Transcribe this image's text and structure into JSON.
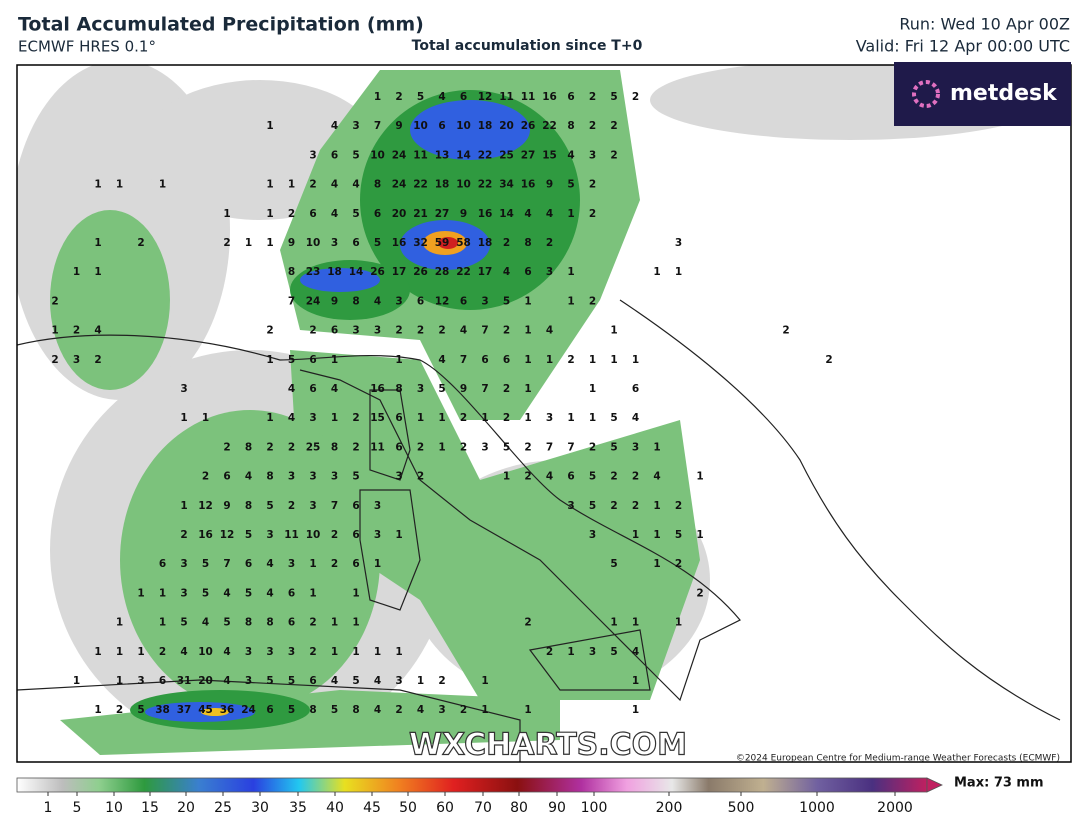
{
  "header": {
    "title": "Total Accumulated Precipitation (mm)",
    "model": "ECMWF HRES 0.1°",
    "subtitle": "Total accumulation since T+0",
    "run": "Run: Wed 10 Apr 00Z",
    "valid": "Valid: Fri 12 Apr 00:00 UTC"
  },
  "logo": "metdesk",
  "map": {
    "grid_rows": [
      [
        null,
        null,
        null,
        null,
        null,
        null,
        null,
        null,
        null,
        null,
        null,
        null,
        null,
        null,
        null,
        1,
        2,
        5,
        4,
        6,
        12,
        11,
        11,
        16,
        6,
        2,
        5,
        2
      ],
      [
        null,
        null,
        null,
        null,
        null,
        null,
        null,
        null,
        null,
        null,
        1,
        null,
        null,
        4,
        3,
        7,
        9,
        10,
        6,
        10,
        18,
        20,
        26,
        22,
        8,
        2,
        2
      ],
      [
        null,
        null,
        null,
        null,
        null,
        null,
        null,
        null,
        null,
        null,
        null,
        null,
        3,
        6,
        5,
        10,
        24,
        11,
        13,
        14,
        22,
        25,
        27,
        15,
        4,
        3,
        2
      ],
      [
        null,
        null,
        1,
        1,
        null,
        1,
        null,
        null,
        null,
        null,
        1,
        1,
        2,
        4,
        4,
        8,
        24,
        22,
        18,
        10,
        22,
        34,
        16,
        9,
        5,
        2
      ],
      [
        null,
        null,
        null,
        null,
        null,
        null,
        null,
        null,
        1,
        null,
        1,
        2,
        6,
        4,
        5,
        6,
        20,
        21,
        27,
        9,
        16,
        14,
        4,
        4,
        1,
        2
      ],
      [
        null,
        null,
        1,
        null,
        2,
        null,
        null,
        null,
        2,
        1,
        1,
        9,
        10,
        3,
        6,
        5,
        16,
        32,
        59,
        58,
        18,
        2,
        8,
        2,
        null,
        null,
        null,
        null,
        null,
        3
      ],
      [
        null,
        1,
        1,
        null,
        null,
        null,
        null,
        null,
        null,
        null,
        null,
        8,
        23,
        18,
        14,
        26,
        17,
        26,
        28,
        22,
        17,
        4,
        6,
        3,
        1,
        null,
        null,
        null,
        1,
        1
      ],
      [
        2,
        null,
        null,
        null,
        null,
        null,
        null,
        null,
        null,
        null,
        null,
        7,
        24,
        9,
        8,
        4,
        3,
        6,
        12,
        6,
        3,
        5,
        1,
        null,
        1,
        2
      ],
      [
        1,
        2,
        4,
        null,
        null,
        null,
        null,
        null,
        null,
        null,
        2,
        null,
        2,
        6,
        3,
        3,
        2,
        2,
        2,
        4,
        7,
        2,
        1,
        4,
        null,
        null,
        1,
        null,
        null,
        null,
        null,
        null,
        null,
        null,
        2
      ],
      [
        2,
        3,
        2,
        null,
        null,
        null,
        null,
        null,
        null,
        null,
        1,
        5,
        6,
        1,
        null,
        null,
        1,
        null,
        4,
        7,
        6,
        6,
        1,
        1,
        2,
        1,
        1,
        1,
        null,
        null,
        null,
        null,
        null,
        null,
        null,
        null,
        2
      ],
      [
        null,
        null,
        null,
        null,
        null,
        null,
        3,
        null,
        null,
        null,
        null,
        4,
        6,
        4,
        null,
        16,
        8,
        3,
        5,
        9,
        7,
        2,
        1,
        null,
        null,
        1,
        null,
        6
      ],
      [
        null,
        null,
        null,
        null,
        null,
        null,
        1,
        1,
        null,
        null,
        1,
        4,
        3,
        1,
        2,
        15,
        6,
        1,
        1,
        2,
        1,
        2,
        1,
        3,
        1,
        1,
        5,
        4
      ],
      [
        null,
        null,
        null,
        null,
        null,
        null,
        null,
        null,
        2,
        8,
        2,
        2,
        25,
        8,
        2,
        11,
        6,
        2,
        1,
        2,
        3,
        5,
        2,
        7,
        7,
        2,
        5,
        3,
        1
      ],
      [
        null,
        null,
        null,
        null,
        null,
        null,
        null,
        2,
        6,
        4,
        8,
        3,
        3,
        3,
        5,
        null,
        3,
        2,
        null,
        null,
        null,
        1,
        2,
        4,
        6,
        5,
        2,
        2,
        4,
        null,
        1
      ],
      [
        null,
        null,
        null,
        null,
        null,
        null,
        1,
        12,
        9,
        8,
        5,
        2,
        3,
        7,
        6,
        3,
        null,
        null,
        null,
        null,
        null,
        null,
        null,
        null,
        3,
        5,
        2,
        2,
        1,
        2
      ],
      [
        null,
        null,
        null,
        null,
        null,
        null,
        2,
        16,
        12,
        5,
        3,
        11,
        10,
        2,
        6,
        3,
        1,
        null,
        null,
        null,
        null,
        null,
        null,
        null,
        null,
        3,
        null,
        1,
        1,
        5,
        1
      ],
      [
        null,
        null,
        null,
        null,
        null,
        6,
        3,
        5,
        7,
        6,
        4,
        3,
        1,
        2,
        6,
        1,
        null,
        null,
        null,
        null,
        null,
        null,
        null,
        null,
        null,
        null,
        5,
        null,
        1,
        2
      ],
      [
        null,
        null,
        null,
        null,
        1,
        1,
        3,
        5,
        4,
        5,
        4,
        6,
        1,
        null,
        1,
        null,
        null,
        null,
        null,
        null,
        null,
        null,
        null,
        null,
        null,
        null,
        null,
        null,
        null,
        null,
        2
      ],
      [
        null,
        null,
        null,
        1,
        null,
        1,
        5,
        4,
        5,
        8,
        8,
        6,
        2,
        1,
        1,
        null,
        null,
        null,
        null,
        null,
        null,
        null,
        2,
        null,
        null,
        null,
        1,
        1,
        null,
        1
      ],
      [
        null,
        null,
        1,
        1,
        1,
        2,
        4,
        10,
        4,
        3,
        3,
        3,
        2,
        1,
        1,
        1,
        1,
        null,
        null,
        null,
        null,
        null,
        null,
        2,
        1,
        3,
        5,
        4
      ],
      [
        null,
        1,
        null,
        1,
        3,
        6,
        31,
        20,
        4,
        3,
        5,
        5,
        6,
        4,
        5,
        4,
        3,
        1,
        2,
        null,
        1,
        null,
        null,
        null,
        null,
        null,
        null,
        1
      ],
      [
        null,
        null,
        1,
        2,
        5,
        38,
        37,
        45,
        36,
        24,
        6,
        5,
        8,
        5,
        8,
        4,
        2,
        4,
        3,
        2,
        1,
        null,
        1,
        null,
        null,
        null,
        null,
        1
      ]
    ],
    "watermark": "WXCHARTS.COM",
    "copyright": "©2024 European Centre for Medium-range Weather Forecasts (ECMWF)"
  },
  "colorbar": {
    "labels": [
      1,
      5,
      10,
      15,
      20,
      25,
      30,
      35,
      40,
      45,
      50,
      60,
      70,
      80,
      90,
      100,
      200,
      500,
      1000,
      2000
    ],
    "max": "Max: 73 mm"
  }
}
